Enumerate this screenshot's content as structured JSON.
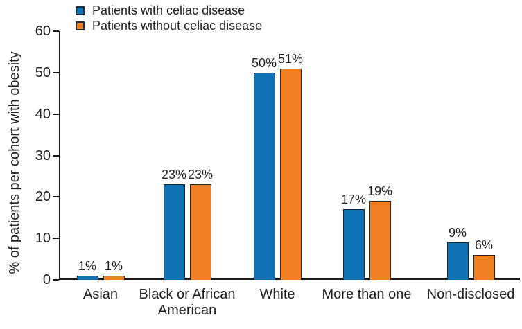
{
  "chart_data": {
    "type": "bar",
    "title": "",
    "ylabel": "% of patients per cohort with obesity",
    "xlabel": "",
    "categories": [
      "Asian",
      "Black or African\nAmerican",
      "White",
      "More than one",
      "Non-disclosed"
    ],
    "series": [
      {
        "key": "with-celiac",
        "name": "Patients with celiac disease",
        "color": "#0e71b4",
        "values": [
          1,
          23,
          50,
          17,
          9
        ],
        "value_labels": [
          "1%",
          "23%",
          "50%",
          "17%",
          "9%"
        ]
      },
      {
        "key": "without-celiac",
        "name": "Patients without celiac disease",
        "color": "#f07e23",
        "values": [
          1,
          23,
          51,
          19,
          6
        ],
        "value_labels": [
          "1%",
          "23%",
          "51%",
          "19%",
          "6%"
        ]
      }
    ],
    "ylim": [
      0,
      60
    ],
    "yticks": [
      0,
      10,
      20,
      30,
      40,
      50,
      60
    ],
    "grid": false,
    "legend_position": "top-left",
    "colors": {
      "axis": "#1a1a1a",
      "text": "#231f20",
      "bar_border": "#1e2833"
    }
  }
}
